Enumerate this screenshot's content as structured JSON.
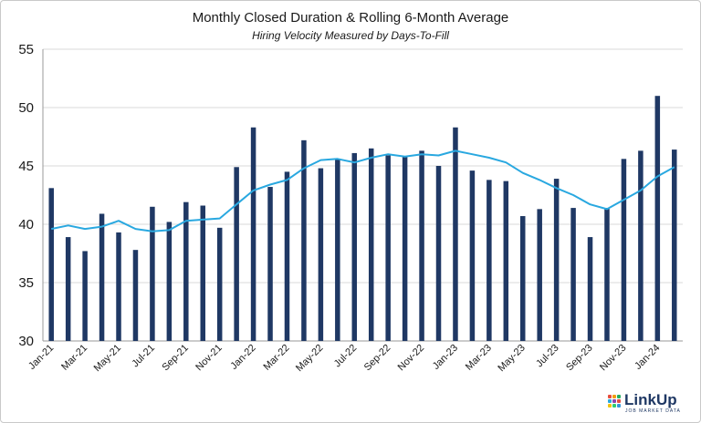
{
  "header": {
    "title": "Monthly Closed Duration & Rolling 6-Month Average",
    "subtitle": "Hiring Velocity Measured by Days-To-Fill"
  },
  "logo": {
    "name": "LinkUp",
    "tagline": "JOB MARKET DATA"
  },
  "colors": {
    "bars": "#1f3864",
    "line": "#29a8e0",
    "grid": "#d9d9d9",
    "axis": "#9a9a9a"
  },
  "chart_data": {
    "type": "bar",
    "title": "Monthly Closed Duration & Rolling 6-Month Average",
    "subtitle": "Hiring Velocity Measured by Days-To-Fill",
    "xlabel": "",
    "ylabel": "",
    "ylim": [
      30,
      55
    ],
    "yticks": [
      30,
      35,
      40,
      45,
      50,
      55
    ],
    "grid": "horizontal",
    "legend": "none",
    "categories": [
      "Jan-21",
      "Feb-21",
      "Mar-21",
      "Apr-21",
      "May-21",
      "Jun-21",
      "Jul-21",
      "Aug-21",
      "Sep-21",
      "Oct-21",
      "Nov-21",
      "Dec-21",
      "Jan-22",
      "Feb-22",
      "Mar-22",
      "Apr-22",
      "May-22",
      "Jun-22",
      "Jul-22",
      "Aug-22",
      "Sep-22",
      "Oct-22",
      "Nov-22",
      "Dec-22",
      "Jan-23",
      "Feb-23",
      "Mar-23",
      "Apr-23",
      "May-23",
      "Jun-23",
      "Jul-23",
      "Aug-23",
      "Sep-23",
      "Oct-23",
      "Nov-23",
      "Dec-23",
      "Jan-24",
      "Feb-24"
    ],
    "x_tick_labels": [
      "Jan-21",
      "Mar-21",
      "May-21",
      "Jul-21",
      "Sep-21",
      "Nov-21",
      "Jan-22",
      "Mar-22",
      "May-22",
      "Jul-22",
      "Sep-22",
      "Nov-22",
      "Jan-23",
      "Mar-23",
      "May-23",
      "Jul-23",
      "Sep-23",
      "Nov-23",
      "Jan-24"
    ],
    "series": [
      {
        "type": "bar",
        "values": [
          43.1,
          38.9,
          37.7,
          40.9,
          39.3,
          37.8,
          41.5,
          40.2,
          41.9,
          41.6,
          39.7,
          44.9,
          48.3,
          43.2,
          44.5,
          47.2,
          44.8,
          45.6,
          46.1,
          46.5,
          45.9,
          45.8,
          46.3,
          45.0,
          48.3,
          44.6,
          43.8,
          43.7,
          40.7,
          41.3,
          43.9,
          41.4,
          38.9,
          41.4,
          45.6,
          46.3,
          51.0,
          46.4
        ]
      },
      {
        "type": "line",
        "values": [
          39.6,
          39.9,
          39.6,
          39.8,
          40.3,
          39.6,
          39.4,
          39.5,
          40.3,
          40.4,
          40.5,
          41.7,
          42.9,
          43.4,
          43.8,
          44.8,
          45.5,
          45.6,
          45.3,
          45.7,
          46.0,
          45.8,
          46.0,
          45.9,
          46.3,
          46.0,
          45.7,
          45.3,
          44.4,
          43.8,
          43.1,
          42.5,
          41.7,
          41.3,
          42.1,
          42.9,
          44.1,
          44.9
        ]
      }
    ]
  }
}
